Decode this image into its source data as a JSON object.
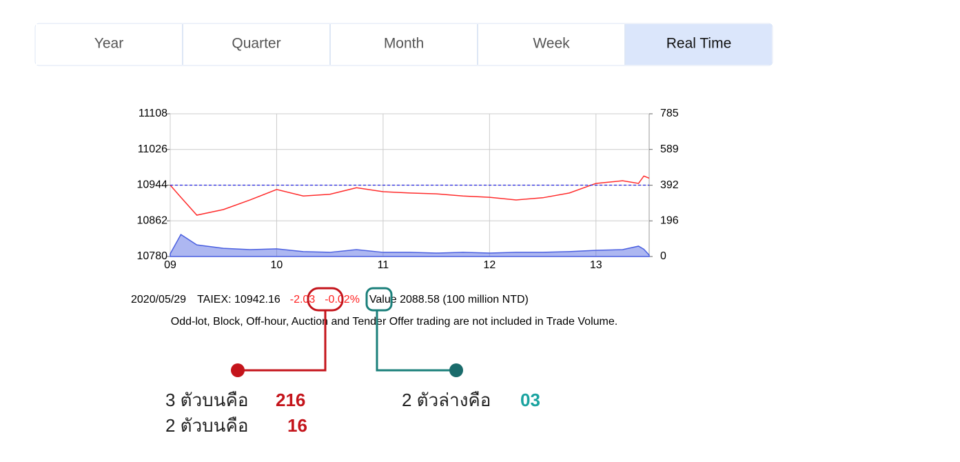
{
  "tabs": [
    "Year",
    "Quarter",
    "Month",
    "Week",
    "Real Time"
  ],
  "chart_data": {
    "type": "line",
    "x": [
      9,
      9.1,
      9.25,
      9.5,
      9.75,
      10,
      10.25,
      10.5,
      10.75,
      11,
      11.25,
      11.5,
      11.75,
      12,
      12.25,
      12.5,
      12.75,
      13,
      13.25,
      13.4,
      13.45,
      13.5
    ],
    "xlim": [
      9,
      13.5
    ],
    "xticks": [
      {
        "value": 9,
        "label": "09"
      },
      10,
      11,
      12,
      13
    ],
    "ylim": [
      10780,
      11108
    ],
    "yticks": [
      10780,
      10862,
      10944,
      11026,
      11108
    ],
    "y2lim": [
      0,
      785
    ],
    "y2ticks": [
      0,
      196,
      392,
      589,
      785
    ],
    "grid": true,
    "reference_line": 10944,
    "series": [
      {
        "color": "#ff2a2a",
        "values": [
          10944,
          10916,
          10875,
          10888,
          10910,
          10934,
          10919,
          10923,
          10938,
          10929,
          10926,
          10924,
          10919,
          10916,
          10910,
          10915,
          10926,
          10948,
          10954,
          10948,
          10965,
          10960
        ]
      },
      {
        "color": "#4a5fe0",
        "axis": "y2",
        "fill": true,
        "values": [
          15,
          121,
          64,
          45,
          38,
          42,
          27,
          23,
          38,
          23,
          23,
          19,
          23,
          19,
          23,
          23,
          27,
          34,
          38,
          57,
          40,
          8
        ]
      }
    ]
  },
  "info": {
    "date": "2020/05/29",
    "index": "TAIEX: 10942.16",
    "change": "-2.03",
    "change_percent": "-0.02%",
    "value": "Value 2088.58 (100 million NTD)",
    "note": "Odd-lot, Block, Off-hour, Auction and Tender Offer trading are not included in Trade Volume."
  },
  "annotations": {
    "upper_three_label": "3 ตัวบนคือ",
    "upper_three": "216",
    "upper_two_label": "2 ตัวบนคือ",
    "upper_two": "16",
    "lower_two_label": "2 ตัวล่างคือ",
    "lower_two": "03"
  }
}
